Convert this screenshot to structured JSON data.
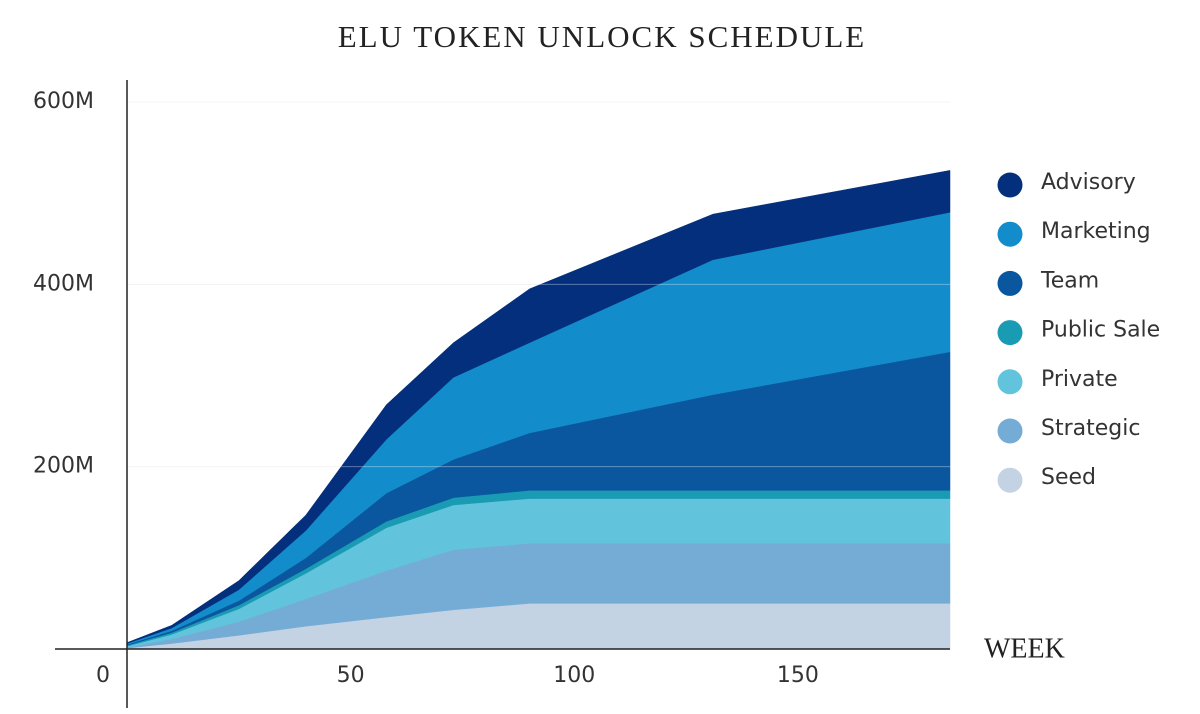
{
  "chart_data": {
    "type": "stacked-area",
    "title": "ELU TOKEN UNLOCK SCHEDULE",
    "x_label": "WEEK",
    "x": [
      0,
      10,
      25,
      40,
      58,
      73,
      90,
      131,
      184
    ],
    "xlim": [
      0,
      184
    ],
    "xticks": [
      0,
      50,
      100,
      150
    ],
    "ylim": [
      0,
      600000000
    ],
    "yticks": [
      {
        "value": 200000000,
        "label": "200M"
      },
      {
        "value": 400000000,
        "label": "400M"
      },
      {
        "value": 600000000,
        "label": "600M"
      }
    ],
    "grid": true,
    "legend": "right",
    "series": [
      {
        "name": "Seed",
        "color": "#c3d3e3",
        "values": [
          1000000,
          6000000,
          15000000,
          25000000,
          35000000,
          43000000,
          50000000,
          50000000,
          50000000
        ]
      },
      {
        "name": "Strategic",
        "color": "#74acd6",
        "values": [
          1000000,
          5000000,
          15000000,
          30000000,
          51000000,
          66000000,
          66000000,
          66000000,
          66000000
        ]
      },
      {
        "name": "Private",
        "color": "#62c3dc",
        "values": [
          1000000,
          5000000,
          14000000,
          28000000,
          47000000,
          49000000,
          49000000,
          49000000,
          49000000
        ]
      },
      {
        "name": "Public Sale",
        "color": "#1a9bb4",
        "values": [
          1000000,
          2000000,
          4000000,
          5000000,
          7000000,
          8000000,
          9000000,
          9000000,
          9000000
        ]
      },
      {
        "name": "Team",
        "color": "#0a57a0",
        "values": [
          1000000,
          2000000,
          5000000,
          12000000,
          31000000,
          42000000,
          63000000,
          105000000,
          152000000
        ]
      },
      {
        "name": "Marketing",
        "color": "#138ccb",
        "values": [
          1000000,
          3000000,
          12000000,
          30000000,
          59000000,
          90000000,
          99000000,
          148000000,
          153000000
        ]
      },
      {
        "name": "Advisory",
        "color": "#042f7c",
        "values": [
          1000000,
          3000000,
          10000000,
          17000000,
          38000000,
          38000000,
          59000000,
          50000000,
          46000000
        ]
      }
    ]
  }
}
